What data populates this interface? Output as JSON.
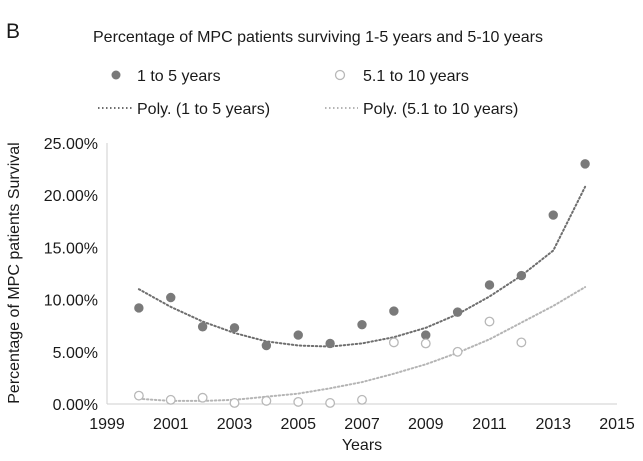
{
  "chart_data": {
    "type": "scatter",
    "panel_label": "B",
    "title": "Percentage of MPC patients surviving 1-5 years and 5-10 years",
    "xlabel": "Years",
    "ylabel": "Percentage of MPC patients Survival",
    "xlim": [
      1999,
      2015
    ],
    "ylim": [
      0,
      0.25
    ],
    "x_ticks": [
      "1999",
      "2001",
      "2003",
      "2005",
      "2007",
      "2009",
      "2011",
      "2013",
      "2015"
    ],
    "y_ticks": [
      "0.00%",
      "5.00%",
      "10.00%",
      "15.00%",
      "20.00%",
      "25.00%"
    ],
    "legend_position": "top",
    "grid": false,
    "series": [
      {
        "name": "1 to 5 years",
        "marker": "filled-circle",
        "color": "#7a7a7a",
        "x": [
          2000,
          2001,
          2002,
          2003,
          2004,
          2005,
          2006,
          2007,
          2008,
          2009,
          2010,
          2011,
          2012,
          2013,
          2014
        ],
        "y": [
          0.092,
          0.102,
          0.074,
          0.073,
          0.056,
          0.066,
          0.058,
          0.076,
          0.089,
          0.066,
          0.088,
          0.114,
          0.123,
          0.181,
          0.23
        ]
      },
      {
        "name": "5.1 to 10 years",
        "marker": "open-circle",
        "color": "#b8b8b8",
        "x": [
          2000,
          2001,
          2002,
          2003,
          2004,
          2005,
          2006,
          2007,
          2008,
          2009,
          2010,
          2011,
          2012
        ],
        "y": [
          0.008,
          0.004,
          0.006,
          0.001,
          0.003,
          0.002,
          0.001,
          0.004,
          0.059,
          0.058,
          0.05,
          0.079,
          0.059
        ]
      }
    ],
    "trendlines": [
      {
        "name": "Poly. (1 to 5 years)",
        "style": "dotted",
        "color": "#6e6e6e",
        "x": [
          2000,
          2001,
          2002,
          2003,
          2004,
          2005,
          2006,
          2007,
          2008,
          2009,
          2010,
          2011,
          2012,
          2013,
          2014
        ],
        "y": [
          0.11,
          0.093,
          0.079,
          0.068,
          0.06,
          0.056,
          0.055,
          0.058,
          0.064,
          0.073,
          0.086,
          0.103,
          0.123,
          0.147,
          0.208
        ]
      },
      {
        "name": "Poly. (5.1 to 10 years)",
        "style": "dotted",
        "color": "#b5b5b5",
        "x": [
          2000,
          2001,
          2002,
          2003,
          2004,
          2005,
          2006,
          2007,
          2008,
          2009,
          2010,
          2011,
          2012,
          2013,
          2014
        ],
        "y": [
          0.005,
          0.003,
          0.003,
          0.004,
          0.007,
          0.01,
          0.015,
          0.021,
          0.029,
          0.038,
          0.049,
          0.062,
          0.078,
          0.094,
          0.112
        ]
      }
    ]
  }
}
